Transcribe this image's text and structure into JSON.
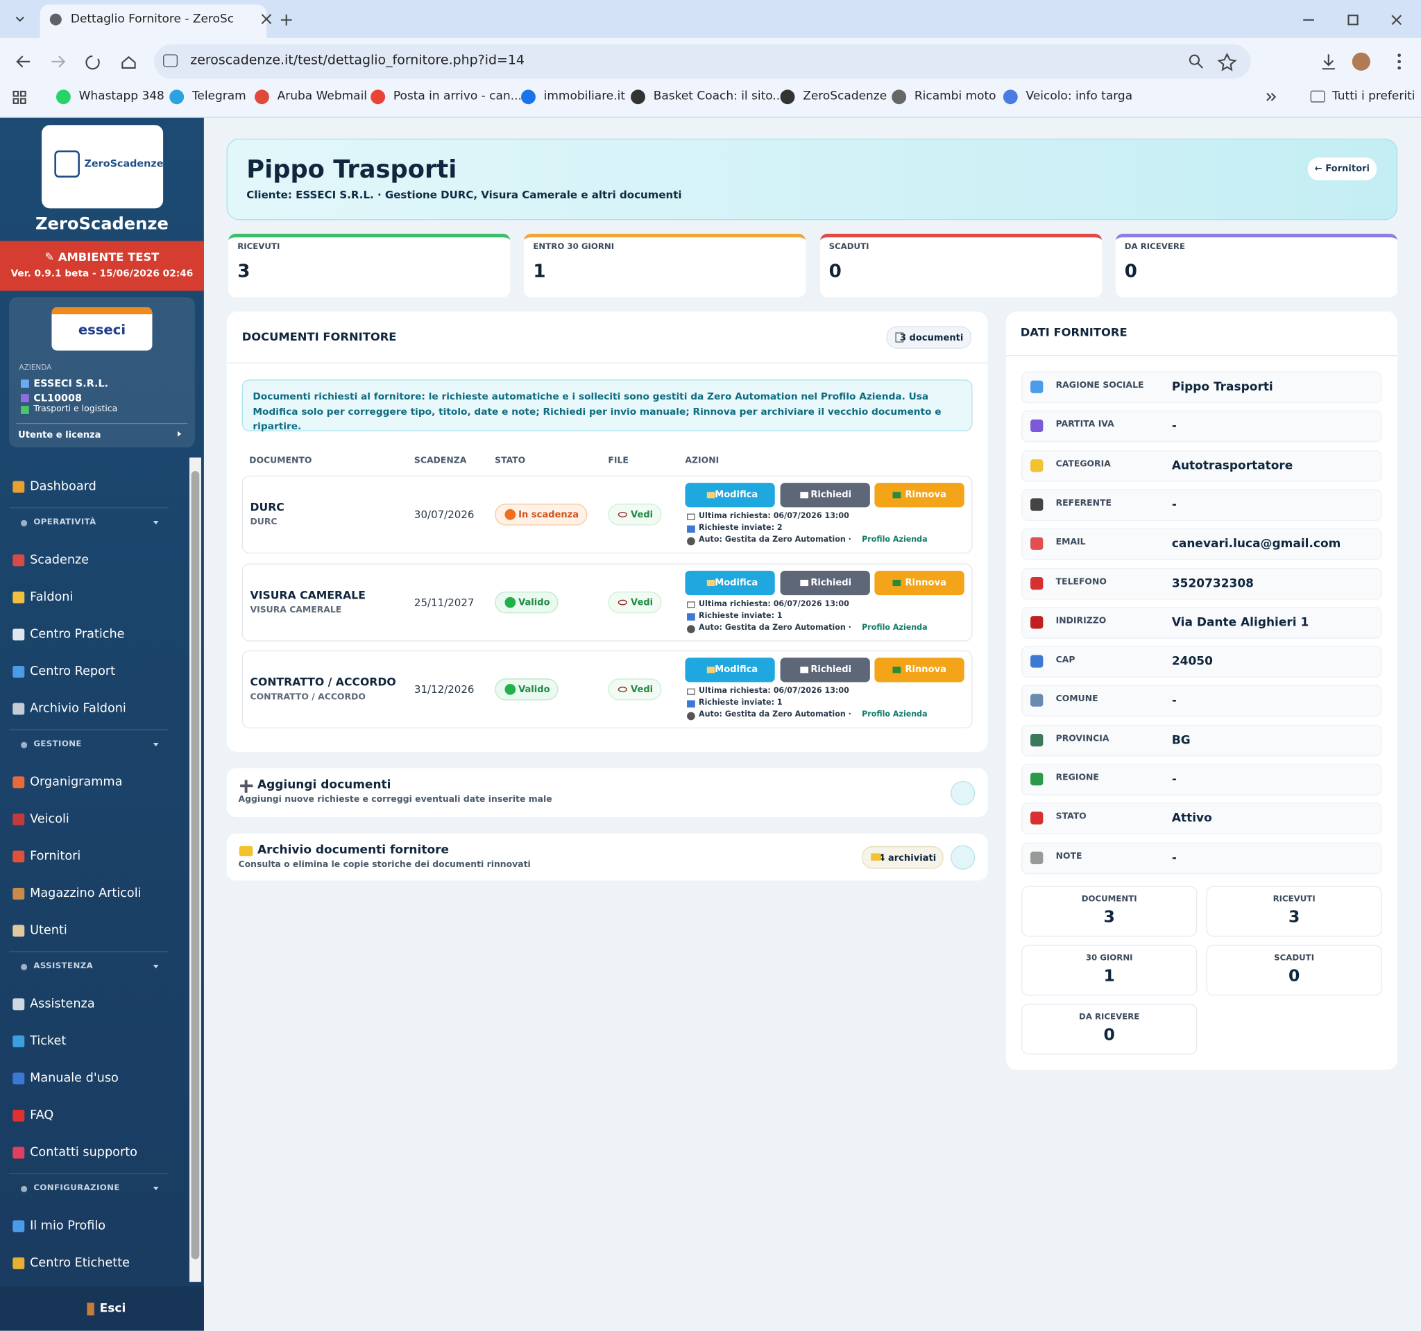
{
  "browser": {
    "tab_title": "Dettaglio Fornitore - ZeroScade",
    "url": "zeroscadenze.it/test/dettaglio_fornitore.php?id=14",
    "bookmarks": [
      "Whastapp 348",
      "Telegram",
      "Aruba Webmail",
      "Posta in arrivo - can...",
      "immobiliare.it",
      "Basket Coach: il sito...",
      "ZeroScadenze",
      "Ricambi moto",
      "Veicolo: info targa"
    ],
    "all_bookmarks": "Tutti i preferiti"
  },
  "sidebar": {
    "logo_text": "ZeroScadenze",
    "brand": "ZeroScadenze",
    "environment": "✎ AMBIENTE TEST",
    "version": "Ver. 0.9.1 beta - 15/06/2026 02:46",
    "company": {
      "logo": "esseci",
      "label": "AZIENDA",
      "name": "ESSECI S.R.L.",
      "code": "CL10008",
      "sector": "Trasporti e logistica"
    },
    "user_license": "Utente e licenza",
    "menu_groups": [
      {
        "items": [
          "Dashboard"
        ]
      },
      {
        "title": "OPERATIVITÀ",
        "items": [
          "Scadenze",
          "Faldoni",
          "Centro Pratiche",
          "Centro Report",
          "Archivio Faldoni"
        ]
      },
      {
        "title": "GESTIONE",
        "items": [
          "Organigramma",
          "Veicoli",
          "Fornitori",
          "Magazzino Articoli",
          "Utenti"
        ]
      },
      {
        "title": "ASSISTENZA",
        "items": [
          "Assistenza",
          "Ticket",
          "Manuale d'uso",
          "FAQ",
          "Contatti supporto"
        ]
      },
      {
        "title": "CONFIGURAZIONE",
        "items": [
          "Il mio Profilo",
          "Centro Etichette"
        ]
      }
    ],
    "logout": "Esci"
  },
  "header": {
    "title": "Pippo Trasporti",
    "subtitle": "Cliente: ESSECI S.R.L. · Gestione DURC, Visura Camerale e altri documenti",
    "back_link": "← Fornitori"
  },
  "stats": [
    {
      "label": "RICEVUTI",
      "value": 3
    },
    {
      "label": "ENTRO 30 GIORNI",
      "value": 1
    },
    {
      "label": "SCADUTI",
      "value": 0
    },
    {
      "label": "DA RICEVERE",
      "value": 0
    }
  ],
  "documents": {
    "title": "DOCUMENTI FORNITORE",
    "count_badge": "3 documenti",
    "notice": "Documenti richiesti al fornitore: le richieste automatiche e i solleciti sono gestiti da Zero Automation nel Profilo Azienda. Usa Modifica solo per correggere tipo, titolo, date e note; Richiedi per invio manuale; Rinnova per archiviare il vecchio documento e ripartire.",
    "columns": [
      "DOCUMENTO",
      "SCADENZA",
      "STATO",
      "FILE",
      "AZIONI"
    ],
    "actions": [
      "Modifica",
      "Richiedi",
      "Rinnova"
    ],
    "file_label": "Vedi",
    "auto_text": "Auto: Gestita da Zero Automation ·",
    "auto_link": "Profilo Azienda",
    "rows": [
      {
        "name": "DURC",
        "type": "DURC",
        "expiry": "30/07/2026",
        "status": "In scadenza",
        "last_request": "Ultima richiesta: 06/07/2026 13:00",
        "sent": "Richieste inviate: 2"
      },
      {
        "name": "VISURA CAMERALE",
        "type": "VISURA CAMERALE",
        "expiry": "25/11/2027",
        "status": "Valido",
        "last_request": "Ultima richiesta: 06/07/2026 13:00",
        "sent": "Richieste inviate: 1"
      },
      {
        "name": "CONTRATTO / ACCORDO",
        "type": "CONTRATTO / ACCORDO",
        "expiry": "31/12/2026",
        "status": "Valido",
        "last_request": "Ultima richiesta: 06/07/2026 13:00",
        "sent": "Richieste inviate: 1"
      }
    ]
  },
  "add_panel": {
    "title": "Aggiungi documenti",
    "subtitle": "Aggiungi nuove richieste e correggi eventuali date inserite male"
  },
  "archive_panel": {
    "title": "Archivio documenti fornitore",
    "subtitle": "Consulta o elimina le copie storiche dei documenti rinnovati",
    "badge": "4 archiviati"
  },
  "supplier": {
    "title": "DATI FORNITORE",
    "fields": [
      {
        "label": "RAGIONE SOCIALE",
        "value": "Pippo Trasporti"
      },
      {
        "label": "PARTITA IVA",
        "value": "-"
      },
      {
        "label": "CATEGORIA",
        "value": "Autotrasportatore"
      },
      {
        "label": "REFERENTE",
        "value": "-"
      },
      {
        "label": "EMAIL",
        "value": "canevari.luca@gmail.com"
      },
      {
        "label": "TELEFONO",
        "value": "3520732308"
      },
      {
        "label": "INDIRIZZO",
        "value": "Via Dante Alighieri 1"
      },
      {
        "label": "CAP",
        "value": "24050"
      },
      {
        "label": "COMUNE",
        "value": "-"
      },
      {
        "label": "PROVINCIA",
        "value": "BG"
      },
      {
        "label": "REGIONE",
        "value": "-"
      },
      {
        "label": "STATO",
        "value": "Attivo"
      },
      {
        "label": "NOTE",
        "value": "-"
      }
    ],
    "summary": [
      {
        "label": "DOCUMENTI",
        "value": 3
      },
      {
        "label": "RICEVUTI",
        "value": 3
      },
      {
        "label": "30 GIORNI",
        "value": 1
      },
      {
        "label": "SCADUTI",
        "value": 0
      },
      {
        "label": "DA RICEVERE",
        "value": 0
      }
    ]
  }
}
